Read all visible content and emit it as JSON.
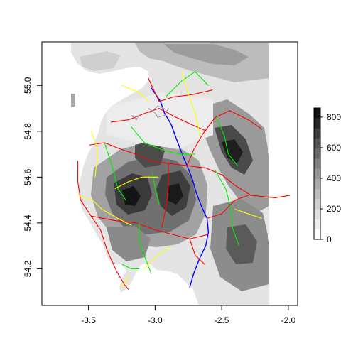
{
  "chart_data": {
    "type": "heatmap",
    "title": "",
    "xlabel": "",
    "ylabel": "",
    "xlim": [
      -3.85,
      -1.93
    ],
    "ylim": [
      54.04,
      55.19
    ],
    "x_ticks": [
      "-3.5",
      "-3.0",
      "-2.5",
      "-2.0"
    ],
    "x_tick_values": [
      -3.5,
      -3.0,
      -2.5,
      -2.0
    ],
    "y_ticks": [
      "54.2",
      "54.4",
      "54.6",
      "54.8",
      "55.0"
    ],
    "y_tick_values": [
      54.2,
      54.4,
      54.6,
      54.8,
      55.0
    ],
    "raster_extent": {
      "lon": [
        -3.62,
        -2.16
      ],
      "lat": [
        54.04,
        55.17
      ]
    },
    "legend": {
      "placement": "right",
      "ticks": [
        "0",
        "200",
        "400",
        "600",
        "800"
      ],
      "tick_values": [
        0,
        200,
        400,
        600,
        800
      ],
      "range": [
        0,
        860
      ],
      "colors": [
        "#ffffff",
        "#efefef",
        "#e0e0e0",
        "#cfcfcf",
        "#bdbdbd",
        "#aaaaaa",
        "#969696",
        "#808080",
        "#696969",
        "#545454",
        "#3d3d3d",
        "#262626",
        "#111111"
      ]
    },
    "grid": false,
    "colors": {
      "motorway": "#0000ff",
      "trunk": "#ff0000",
      "primary": "#00ee00",
      "secondary": "#ffff00",
      "urban": "#888888"
    },
    "roads": [
      {
        "class": "motorway",
        "points": [
          [
            -3.03,
            54.99
          ],
          [
            -2.96,
            54.93
          ],
          [
            -2.93,
            54.88
          ],
          [
            -2.88,
            54.83
          ],
          [
            -2.83,
            54.75
          ],
          [
            -2.79,
            54.69
          ],
          [
            -2.76,
            54.65
          ],
          [
            -2.72,
            54.59
          ],
          [
            -2.69,
            54.53
          ],
          [
            -2.65,
            54.47
          ],
          [
            -2.61,
            54.42
          ],
          [
            -2.6,
            54.36
          ],
          [
            -2.62,
            54.3
          ],
          [
            -2.67,
            54.24
          ],
          [
            -2.71,
            54.18
          ],
          [
            -2.74,
            54.12
          ]
        ]
      },
      {
        "class": "trunk",
        "points": [
          [
            -3.05,
            55.03
          ],
          [
            -2.97,
            54.93
          ],
          [
            -2.86,
            54.95
          ],
          [
            -2.72,
            54.96
          ],
          [
            -2.57,
            54.98
          ]
        ]
      },
      {
        "class": "trunk",
        "points": [
          [
            -2.97,
            54.9
          ],
          [
            -2.84,
            54.86
          ],
          [
            -2.73,
            54.83
          ],
          [
            -2.61,
            54.8
          ]
        ]
      },
      {
        "class": "trunk",
        "points": [
          [
            -3.33,
            54.84
          ],
          [
            -3.2,
            54.85
          ],
          [
            -3.07,
            54.88
          ],
          [
            -2.97,
            54.9
          ]
        ]
      },
      {
        "class": "trunk",
        "points": [
          [
            -3.49,
            54.74
          ],
          [
            -3.38,
            54.75
          ],
          [
            -3.25,
            54.72
          ],
          [
            -3.14,
            54.7
          ],
          [
            -3.03,
            54.67
          ],
          [
            -2.9,
            54.66
          ],
          [
            -2.76,
            54.65
          ]
        ]
      },
      {
        "class": "trunk",
        "points": [
          [
            -2.76,
            54.65
          ],
          [
            -2.62,
            54.64
          ],
          [
            -2.5,
            54.61
          ],
          [
            -2.39,
            54.56
          ],
          [
            -2.28,
            54.52
          ],
          [
            -2.1,
            54.51
          ],
          [
            -1.99,
            54.52
          ]
        ]
      },
      {
        "class": "trunk",
        "points": [
          [
            -3.58,
            54.67
          ],
          [
            -3.58,
            54.58
          ],
          [
            -3.56,
            54.5
          ],
          [
            -3.48,
            54.43
          ],
          [
            -3.41,
            54.37
          ],
          [
            -3.36,
            54.28
          ],
          [
            -3.29,
            54.19
          ],
          [
            -3.23,
            54.13
          ],
          [
            -3.2,
            54.11
          ]
        ]
      },
      {
        "class": "trunk",
        "points": [
          [
            -3.48,
            54.43
          ],
          [
            -3.3,
            54.41
          ],
          [
            -3.14,
            54.4
          ],
          [
            -3.0,
            54.37
          ],
          [
            -2.87,
            54.35
          ],
          [
            -2.74,
            54.33
          ],
          [
            -2.6,
            54.35
          ]
        ]
      },
      {
        "class": "trunk",
        "points": [
          [
            -2.9,
            54.66
          ],
          [
            -2.9,
            54.56
          ],
          [
            -2.92,
            54.46
          ],
          [
            -2.95,
            54.38
          ]
        ]
      },
      {
        "class": "trunk",
        "points": [
          [
            -2.74,
            54.33
          ],
          [
            -2.7,
            54.26
          ],
          [
            -2.63,
            54.22
          ]
        ]
      },
      {
        "class": "trunk",
        "points": [
          [
            -2.76,
            54.65
          ],
          [
            -2.71,
            54.72
          ],
          [
            -2.64,
            54.79
          ],
          [
            -2.55,
            54.86
          ],
          [
            -2.44,
            54.89
          ],
          [
            -2.3,
            54.85
          ],
          [
            -2.2,
            54.81
          ]
        ]
      },
      {
        "class": "trunk",
        "points": [
          [
            -2.61,
            54.42
          ],
          [
            -2.5,
            54.44
          ],
          [
            -2.4,
            54.5
          ],
          [
            -2.3,
            54.52
          ]
        ]
      },
      {
        "class": "primary",
        "points": [
          [
            -2.92,
            54.95
          ],
          [
            -2.8,
            55.02
          ],
          [
            -2.7,
            55.06
          ],
          [
            -2.6,
            55.0
          ]
        ]
      },
      {
        "class": "primary",
        "points": [
          [
            -3.18,
            54.82
          ],
          [
            -3.08,
            54.75
          ],
          [
            -2.95,
            54.72
          ],
          [
            -2.82,
            54.7
          ],
          [
            -2.7,
            54.7
          ]
        ]
      },
      {
        "class": "primary",
        "points": [
          [
            -3.38,
            54.75
          ],
          [
            -3.32,
            54.64
          ],
          [
            -3.28,
            54.55
          ],
          [
            -3.22,
            54.5
          ]
        ]
      },
      {
        "class": "primary",
        "points": [
          [
            -2.55,
            54.63
          ],
          [
            -2.47,
            54.55
          ],
          [
            -2.43,
            54.46
          ],
          [
            -2.42,
            54.38
          ],
          [
            -2.37,
            54.3
          ]
        ]
      },
      {
        "class": "primary",
        "points": [
          [
            -2.54,
            54.86
          ],
          [
            -2.48,
            54.78
          ],
          [
            -2.45,
            54.7
          ],
          [
            -2.38,
            54.65
          ]
        ]
      },
      {
        "class": "primary",
        "points": [
          [
            -3.12,
            54.4
          ],
          [
            -3.12,
            54.32
          ],
          [
            -3.07,
            54.24
          ],
          [
            -3.03,
            54.18
          ]
        ]
      },
      {
        "class": "primary",
        "points": [
          [
            -3.25,
            54.22
          ],
          [
            -3.18,
            54.2
          ],
          [
            -3.12,
            54.2
          ]
        ]
      },
      {
        "class": "primary",
        "points": [
          [
            -3.02,
            54.62
          ],
          [
            -3.0,
            54.55
          ],
          [
            -2.97,
            54.48
          ]
        ]
      },
      {
        "class": "secondary",
        "points": [
          [
            -3.25,
            55.0
          ],
          [
            -3.12,
            54.97
          ],
          [
            -3.05,
            54.93
          ]
        ]
      },
      {
        "class": "secondary",
        "points": [
          [
            -3.48,
            54.8
          ],
          [
            -3.43,
            54.72
          ],
          [
            -3.45,
            54.6
          ]
        ]
      },
      {
        "class": "secondary",
        "points": [
          [
            -3.58,
            54.52
          ],
          [
            -3.47,
            54.5
          ],
          [
            -3.4,
            54.46
          ],
          [
            -3.28,
            54.42
          ],
          [
            -3.18,
            54.39
          ]
        ]
      },
      {
        "class": "secondary",
        "points": [
          [
            -3.3,
            54.55
          ],
          [
            -3.2,
            54.58
          ],
          [
            -3.1,
            54.6
          ],
          [
            -2.98,
            54.6
          ]
        ]
      },
      {
        "class": "secondary",
        "points": [
          [
            -2.8,
            55.06
          ],
          [
            -2.75,
            54.96
          ],
          [
            -2.7,
            54.88
          ],
          [
            -2.66,
            54.78
          ]
        ]
      },
      {
        "class": "secondary",
        "points": [
          [
            -3.08,
            54.2
          ],
          [
            -3.02,
            54.24
          ],
          [
            -2.95,
            54.27
          ],
          [
            -2.88,
            54.3
          ]
        ]
      },
      {
        "class": "secondary",
        "points": [
          [
            -3.26,
            54.12
          ],
          [
            -3.22,
            54.14
          ],
          [
            -3.2,
            54.17
          ]
        ]
      },
      {
        "class": "secondary",
        "points": [
          [
            -2.4,
            54.46
          ],
          [
            -2.3,
            54.44
          ],
          [
            -2.2,
            54.42
          ]
        ]
      },
      {
        "class": "urban",
        "points": [
          [
            -3.05,
            54.9
          ],
          [
            -3.0,
            54.88
          ],
          [
            -2.98,
            54.86
          ],
          [
            -2.93,
            54.87
          ],
          [
            -2.9,
            54.9
          ]
        ]
      },
      {
        "class": "urban",
        "points": [
          [
            -3.04,
            54.88
          ],
          [
            -2.98,
            54.91
          ],
          [
            -2.93,
            54.9
          ]
        ]
      },
      {
        "class": "urban",
        "points": [
          [
            -3.18,
            54.87
          ],
          [
            -3.14,
            54.85
          ],
          [
            -3.12,
            54.87
          ]
        ]
      }
    ]
  }
}
